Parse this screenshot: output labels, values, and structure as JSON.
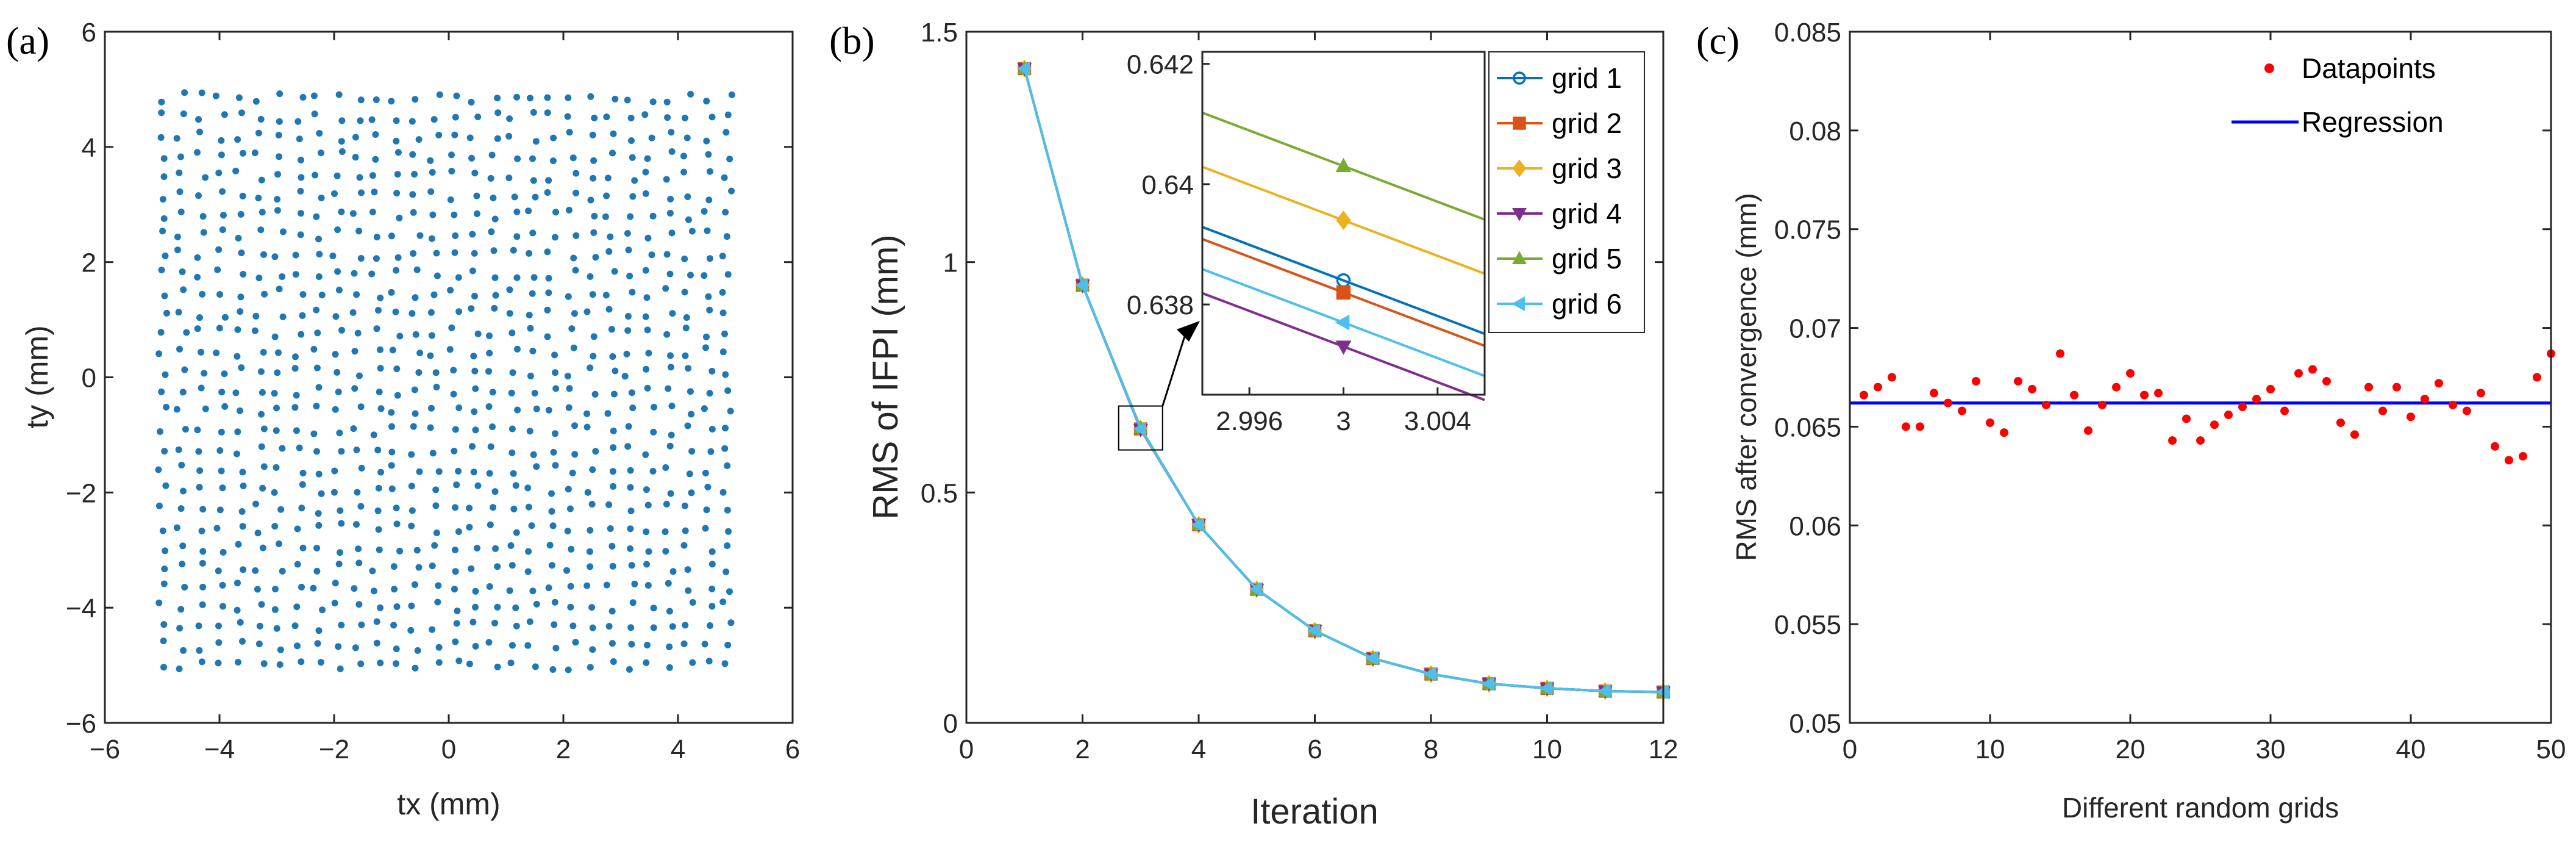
{
  "chart_data": [
    {
      "type": "scatter",
      "panel_label": "(a)",
      "xlabel": "tx (mm)",
      "ylabel": "ty (mm)",
      "xlim": [
        -6,
        6
      ],
      "ylim": [
        -6,
        6
      ],
      "xticks": [
        "−6",
        "−4",
        "−2",
        "0",
        "2",
        "4",
        "6"
      ],
      "yticks": [
        "−6",
        "−4",
        "−2",
        "0",
        "2",
        "4",
        "6"
      ],
      "point_color": "#1f77b4",
      "grid": false,
      "points_description": "approx. 900 jittered grid points uniformly covering -5..5 mm in both tx and ty (spacing ~0.34 mm)",
      "grid_spacing": 0.34,
      "jitter": 0.06,
      "extent": [
        -5.1,
        5.1
      ]
    },
    {
      "type": "line",
      "panel_label": "(b)",
      "xlabel": "Iteration",
      "ylabel": "RMS of IFPI (mm)",
      "xlim": [
        0,
        12
      ],
      "ylim": [
        0,
        1.5
      ],
      "xticks": [
        "0",
        "2",
        "4",
        "6",
        "8",
        "10",
        "12"
      ],
      "yticks": [
        "0",
        "0.5",
        "1",
        "1.5"
      ],
      "x": [
        1,
        2,
        3,
        4,
        5,
        6,
        7,
        8,
        9,
        10,
        11,
        12
      ],
      "series": [
        {
          "name": "grid 1",
          "color": "#0072BD",
          "marker": "circle",
          "values": [
            1.42,
            0.95,
            0.638,
            0.43,
            0.29,
            0.2,
            0.14,
            0.106,
            0.085,
            0.075,
            0.069,
            0.067
          ]
        },
        {
          "name": "grid 2",
          "color": "#D95319",
          "marker": "square",
          "values": [
            1.42,
            0.95,
            0.638,
            0.43,
            0.29,
            0.2,
            0.14,
            0.106,
            0.085,
            0.075,
            0.069,
            0.067
          ]
        },
        {
          "name": "grid 3",
          "color": "#EDB120",
          "marker": "diamond",
          "values": [
            1.42,
            0.95,
            0.639,
            0.43,
            0.29,
            0.2,
            0.14,
            0.106,
            0.085,
            0.075,
            0.069,
            0.067
          ]
        },
        {
          "name": "grid 4",
          "color": "#7E2F8E",
          "marker": "tri-down",
          "values": [
            1.42,
            0.95,
            0.637,
            0.43,
            0.29,
            0.2,
            0.14,
            0.106,
            0.085,
            0.075,
            0.069,
            0.067
          ]
        },
        {
          "name": "grid 5",
          "color": "#77AC30",
          "marker": "tri-up",
          "values": [
            1.42,
            0.95,
            0.64,
            0.43,
            0.29,
            0.2,
            0.14,
            0.106,
            0.085,
            0.075,
            0.069,
            0.067
          ]
        },
        {
          "name": "grid 6",
          "color": "#4DBEEE",
          "marker": "tri-left",
          "values": [
            1.42,
            0.95,
            0.638,
            0.43,
            0.29,
            0.2,
            0.14,
            0.106,
            0.085,
            0.075,
            0.069,
            0.067
          ]
        }
      ],
      "legend": "top-right",
      "inset": {
        "xlim": [
          2.994,
          3.006
        ],
        "ylim": [
          0.6365,
          0.6422
        ],
        "xticks": [
          2.996,
          3,
          3.004
        ],
        "xtick_labels": [
          "2.996",
          "3",
          "3.004"
        ],
        "yticks": [
          0.638,
          0.64,
          0.642
        ],
        "ytick_labels": [
          "0.638",
          "0.64",
          "0.642"
        ],
        "series": [
          {
            "name": "grid 1",
            "at3": 0.6384,
            "slope": -0.148
          },
          {
            "name": "grid 2",
            "at3": 0.6382,
            "slope": -0.148
          },
          {
            "name": "grid 3",
            "at3": 0.6394,
            "slope": -0.148
          },
          {
            "name": "grid 4",
            "at3": 0.6373,
            "slope": -0.148
          },
          {
            "name": "grid 5",
            "at3": 0.6403,
            "slope": -0.148
          },
          {
            "name": "grid 6",
            "at3": 0.6377,
            "slope": -0.148
          }
        ],
        "zoom_box_center": [
          3,
          0.64
        ]
      }
    },
    {
      "type": "scatter",
      "panel_label": "(c)",
      "xlabel": "Different random grids",
      "ylabel": "RMS after convergence (mm)",
      "xlim": [
        0,
        50
      ],
      "ylim": [
        0.05,
        0.085
      ],
      "xticks": [
        "0",
        "10",
        "20",
        "30",
        "40",
        "50"
      ],
      "yticks": [
        "0.05",
        "0.055",
        "0.06",
        "0.065",
        "0.07",
        "0.075",
        "0.08",
        "0.085"
      ],
      "x": [
        1,
        2,
        3,
        4,
        5,
        6,
        7,
        8,
        9,
        10,
        11,
        12,
        13,
        14,
        15,
        16,
        17,
        18,
        19,
        20,
        21,
        22,
        23,
        24,
        25,
        26,
        27,
        28,
        29,
        30,
        31,
        32,
        33,
        34,
        35,
        36,
        37,
        38,
        39,
        40,
        41,
        42,
        43,
        44,
        45,
        46,
        47,
        48,
        49,
        50
      ],
      "values": [
        0.0666,
        0.067,
        0.0675,
        0.065,
        0.065,
        0.0667,
        0.0662,
        0.0658,
        0.0673,
        0.0652,
        0.0647,
        0.0673,
        0.0669,
        0.0661,
        0.0687,
        0.0666,
        0.0648,
        0.0661,
        0.067,
        0.0677,
        0.0666,
        0.0667,
        0.0643,
        0.0654,
        0.0643,
        0.0651,
        0.0656,
        0.066,
        0.0664,
        0.0669,
        0.0658,
        0.0677,
        0.0679,
        0.0673,
        0.0652,
        0.0646,
        0.067,
        0.0658,
        0.067,
        0.0655,
        0.0664,
        0.0672,
        0.0661,
        0.0658,
        0.0667,
        0.064,
        0.0633,
        0.0635,
        0.0675,
        0.0687
      ],
      "regression": 0.0662,
      "point_color": "#ff0000",
      "line_color": "#0000ff",
      "legend_entries": [
        "Datapoints",
        "Regression"
      ],
      "legend": "top-right"
    }
  ]
}
